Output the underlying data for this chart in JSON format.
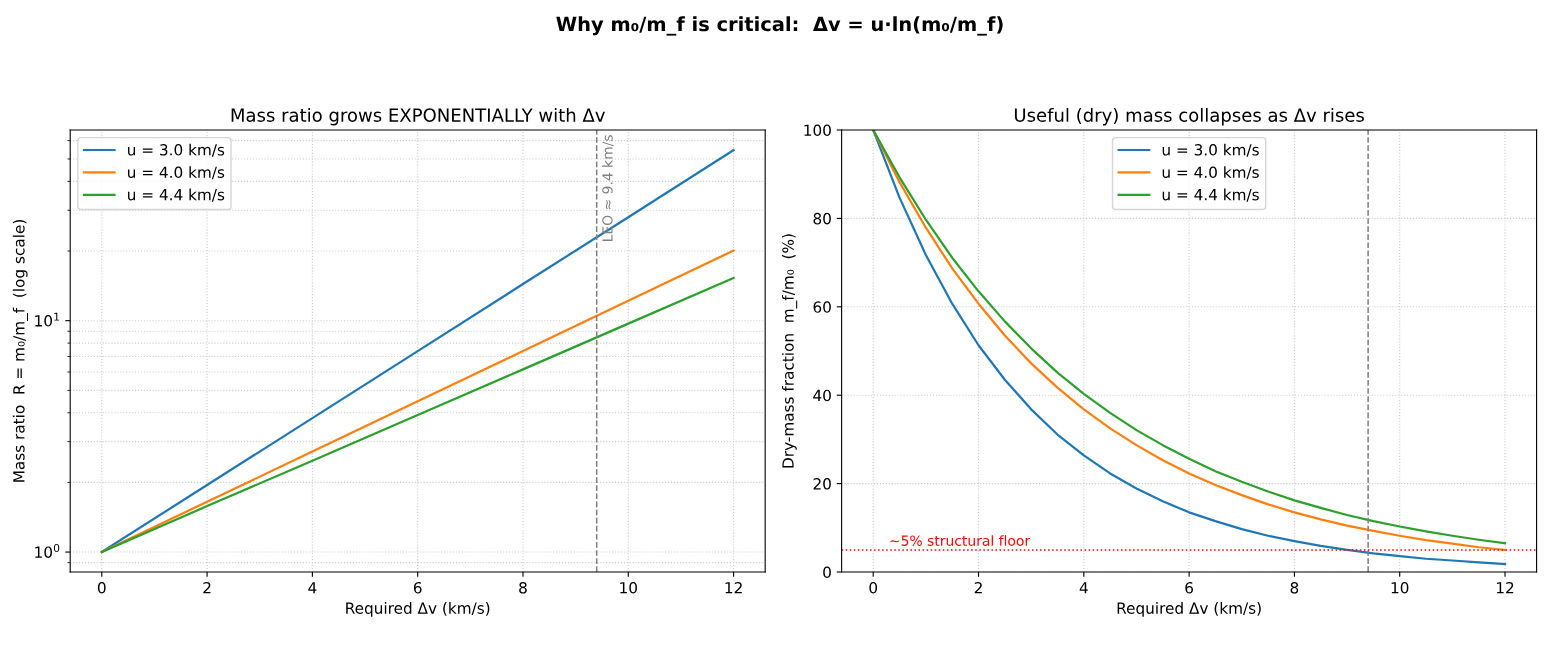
{
  "chart_data": [
    {
      "type": "line",
      "title": "Mass ratio grows EXPONENTIALLY with Δv",
      "subtitle": "Why m₀/m_f is critical:  Δv = u·ln(m₀/m_f)",
      "xlabel": "Required Δv (km/s)",
      "ylabel": "Mass ratio  R = m₀/m_f  (log scale)",
      "x": [
        0,
        2,
        4,
        6,
        8,
        10,
        12
      ],
      "series": [
        {
          "name": "u = 3.0 km/s",
          "color": "#1f77b4",
          "values": [
            1,
            1.95,
            3.79,
            7.39,
            14.4,
            28.0,
            54.6
          ]
        },
        {
          "name": "u = 4.0 km/s",
          "color": "#ff7f0e",
          "values": [
            1,
            1.65,
            2.72,
            4.48,
            7.39,
            12.2,
            20.1
          ]
        },
        {
          "name": "u = 4.4 km/s",
          "color": "#2ca02c",
          "values": [
            1,
            1.58,
            2.48,
            3.91,
            6.16,
            9.71,
            15.3
          ]
        }
      ],
      "log": "y",
      "xlim": [
        -0.6,
        12.6
      ],
      "ylim": [
        0.82,
        66.7
      ],
      "xticks": [
        0,
        2,
        4,
        6,
        8,
        10,
        12
      ],
      "yticks": [
        {
          "value": 1,
          "label": "10$^{0}$"
        },
        {
          "value": 10,
          "label": "10$^{1}$"
        }
      ],
      "ref_lines": [
        {
          "axis": "x",
          "value": 9.4,
          "label": "LEO ≈ 9.4 km/s",
          "color": "#808080",
          "line_style": "dashed"
        }
      ],
      "grid": true,
      "legend": "top left",
      "marker": "none",
      "line_style": "solid"
    },
    {
      "type": "line",
      "title": "Useful (dry) mass collapses as Δv rises",
      "xlabel": "Required Δv (km/s)",
      "ylabel": "Dry-mass fraction  m_f/m₀  (%)",
      "x": [
        0,
        0.5,
        1,
        1.5,
        2,
        2.5,
        3,
        3.5,
        4,
        4.5,
        5,
        5.5,
        6,
        6.5,
        7,
        7.5,
        8,
        8.5,
        9,
        9.5,
        10,
        10.5,
        11,
        11.5,
        12
      ],
      "series": [
        {
          "name": "u = 3.0 km/s",
          "color": "#1f77b4",
          "values": [
            100,
            84.7,
            71.7,
            60.7,
            51.3,
            43.5,
            36.8,
            31.1,
            26.4,
            22.3,
            18.9,
            16.0,
            13.5,
            11.5,
            9.7,
            8.2,
            7.0,
            5.9,
            5.0,
            4.2,
            3.6,
            3.0,
            2.6,
            2.2,
            1.8
          ]
        },
        {
          "name": "u = 4.0 km/s",
          "color": "#ff7f0e",
          "values": [
            100,
            88.2,
            77.9,
            68.7,
            60.7,
            53.5,
            47.2,
            41.7,
            36.8,
            32.5,
            28.7,
            25.3,
            22.3,
            19.7,
            17.4,
            15.3,
            13.5,
            11.9,
            10.5,
            9.3,
            8.2,
            7.2,
            6.4,
            5.6,
            5.0
          ]
        },
        {
          "name": "u = 4.4 km/s",
          "color": "#2ca02c",
          "values": [
            100,
            89.3,
            79.7,
            71.1,
            63.5,
            56.7,
            50.6,
            45.1,
            40.3,
            36.0,
            32.1,
            28.7,
            25.6,
            22.8,
            20.4,
            18.2,
            16.2,
            14.5,
            12.9,
            11.5,
            10.3,
            9.2,
            8.2,
            7.3,
            6.5
          ]
        }
      ],
      "xlim": [
        -0.6,
        12.6
      ],
      "ylim": [
        0,
        100
      ],
      "xticks": [
        0,
        2,
        4,
        6,
        8,
        10,
        12
      ],
      "yticks": [
        0,
        20,
        40,
        60,
        80,
        100
      ],
      "ref_lines": [
        {
          "axis": "x",
          "value": 9.4,
          "color": "#808080",
          "line_style": "dashed"
        },
        {
          "axis": "y",
          "value": 5,
          "label": "~5% structural floor",
          "color": "#ff0000",
          "line_style": "dotted"
        }
      ],
      "grid": true,
      "legend": "top",
      "marker": "none",
      "line_style": "solid"
    }
  ]
}
